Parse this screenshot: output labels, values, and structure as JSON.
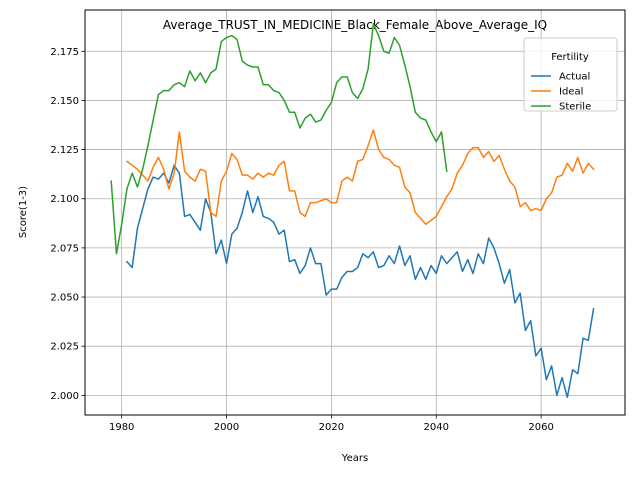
{
  "chart_data": {
    "type": "line",
    "title": "Average_TRUST_IN_MEDICINE_Black_Female_Above_Average_IQ",
    "xlabel": "Years",
    "ylabel": "Score(1-3)",
    "xlim": [
      1973,
      2076
    ],
    "ylim": [
      1.99,
      2.196
    ],
    "xticks": [
      1980,
      2000,
      2020,
      2040,
      2060
    ],
    "yticks": [
      2.0,
      2.025,
      2.05,
      2.075,
      2.1,
      2.125,
      2.15,
      2.175
    ],
    "ytick_labels": [
      "2.000",
      "2.025",
      "2.050",
      "2.075",
      "2.100",
      "2.125",
      "2.150",
      "2.175"
    ],
    "grid": true,
    "legend": {
      "title": "Fertility",
      "placement": "top-right"
    },
    "series": [
      {
        "name": "Actual",
        "color": "#1f77b4",
        "x": [
          1981,
          1982,
          1983,
          1984,
          1985,
          1986,
          1987,
          1988,
          1989,
          1990,
          1991,
          1992,
          1993,
          1994,
          1995,
          1996,
          1997,
          1998,
          1999,
          2000,
          2001,
          2002,
          2003,
          2004,
          2005,
          2006,
          2007,
          2008,
          2009,
          2010,
          2011,
          2012,
          2013,
          2014,
          2015,
          2016,
          2017,
          2018,
          2019,
          2020,
          2021,
          2022,
          2023,
          2024,
          2025,
          2026,
          2027,
          2028,
          2029,
          2030,
          2031,
          2032,
          2033,
          2034,
          2035,
          2036,
          2037,
          2038,
          2039,
          2040,
          2041,
          2042,
          2043,
          2044,
          2045,
          2046,
          2047,
          2048,
          2049,
          2050,
          2051,
          2052,
          2053,
          2054,
          2055,
          2056,
          2057,
          2058,
          2059,
          2060,
          2061,
          2062,
          2063,
          2064,
          2065,
          2066,
          2067,
          2068,
          2069,
          2070
        ],
        "values": [
          2.068,
          2.065,
          2.085,
          2.095,
          2.105,
          2.111,
          2.11,
          2.113,
          2.108,
          2.117,
          2.113,
          2.091,
          2.092,
          2.088,
          2.084,
          2.1,
          2.093,
          2.072,
          2.079,
          2.067,
          2.082,
          2.085,
          2.093,
          2.104,
          2.093,
          2.101,
          2.091,
          2.09,
          2.088,
          2.082,
          2.084,
          2.068,
          2.069,
          2.062,
          2.066,
          2.075,
          2.067,
          2.067,
          2.051,
          2.054,
          2.054,
          2.06,
          2.063,
          2.063,
          2.065,
          2.072,
          2.07,
          2.073,
          2.065,
          2.066,
          2.071,
          2.067,
          2.076,
          2.066,
          2.071,
          2.059,
          2.065,
          2.059,
          2.066,
          2.062,
          2.071,
          2.067,
          2.07,
          2.073,
          2.063,
          2.069,
          2.062,
          2.072,
          2.067,
          2.08,
          2.075,
          2.067,
          2.057,
          2.064,
          2.047,
          2.052,
          2.033,
          2.038,
          2.02,
          2.024,
          2.008,
          2.015,
          2.0,
          2.009,
          1.999,
          2.013,
          2.011,
          2.029,
          2.028,
          2.044
        ]
      },
      {
        "name": "Ideal",
        "color": "#ff7f0e",
        "x": [
          1981,
          1982,
          1983,
          1984,
          1985,
          1986,
          1987,
          1988,
          1989,
          1990,
          1991,
          1992,
          1993,
          1994,
          1995,
          1996,
          1997,
          1998,
          1999,
          2000,
          2001,
          2002,
          2003,
          2004,
          2005,
          2006,
          2007,
          2008,
          2009,
          2010,
          2011,
          2012,
          2013,
          2014,
          2015,
          2016,
          2017,
          2018,
          2019,
          2020,
          2021,
          2022,
          2023,
          2024,
          2025,
          2026,
          2027,
          2028,
          2029,
          2030,
          2031,
          2032,
          2033,
          2034,
          2035,
          2036,
          2037,
          2038,
          2039,
          2040,
          2041,
          2042,
          2043,
          2044,
          2045,
          2046,
          2047,
          2048,
          2049,
          2050,
          2051,
          2052,
          2053,
          2054,
          2055,
          2056,
          2057,
          2058,
          2059,
          2060,
          2061,
          2062,
          2063,
          2064,
          2065,
          2066,
          2067,
          2068,
          2069,
          2070
        ],
        "values": [
          2.119,
          2.117,
          2.115,
          2.112,
          2.109,
          2.116,
          2.121,
          2.115,
          2.105,
          2.113,
          2.134,
          2.114,
          2.111,
          2.109,
          2.115,
          2.114,
          2.093,
          2.091,
          2.109,
          2.114,
          2.123,
          2.12,
          2.112,
          2.112,
          2.11,
          2.113,
          2.111,
          2.113,
          2.112,
          2.117,
          2.119,
          2.104,
          2.104,
          2.093,
          2.091,
          2.098,
          2.098,
          2.099,
          2.1,
          2.098,
          2.098,
          2.109,
          2.111,
          2.109,
          2.119,
          2.12,
          2.127,
          2.135,
          2.125,
          2.121,
          2.12,
          2.117,
          2.116,
          2.106,
          2.103,
          2.093,
          2.09,
          2.087,
          2.089,
          2.091,
          2.096,
          2.101,
          2.105,
          2.113,
          2.117,
          2.123,
          2.126,
          2.126,
          2.121,
          2.124,
          2.119,
          2.122,
          2.115,
          2.109,
          2.106,
          2.096,
          2.098,
          2.094,
          2.095,
          2.094,
          2.1,
          2.103,
          2.111,
          2.112,
          2.118,
          2.114,
          2.121,
          2.113,
          2.118,
          2.115
        ]
      },
      {
        "name": "Sterile",
        "color": "#2ca02c",
        "x": [
          1978,
          1979,
          1980,
          1981,
          1982,
          1983,
          1984,
          1985,
          1986,
          1987,
          1988,
          1989,
          1990,
          1991,
          1992,
          1993,
          1994,
          1995,
          1996,
          1997,
          1998,
          1999,
          2000,
          2001,
          2002,
          2003,
          2004,
          2005,
          2006,
          2007,
          2008,
          2009,
          2010,
          2011,
          2012,
          2013,
          2014,
          2015,
          2016,
          2017,
          2018,
          2019,
          2020,
          2021,
          2022,
          2023,
          2024,
          2025,
          2026,
          2027,
          2028,
          2029,
          2030,
          2031,
          2032,
          2033,
          2034,
          2035,
          2036,
          2037,
          2038,
          2039,
          2040,
          2041,
          2042
        ],
        "values": [
          2.109,
          2.072,
          2.087,
          2.105,
          2.113,
          2.106,
          2.115,
          2.127,
          2.14,
          2.153,
          2.155,
          2.155,
          2.158,
          2.159,
          2.157,
          2.165,
          2.16,
          2.164,
          2.159,
          2.164,
          2.166,
          2.18,
          2.182,
          2.183,
          2.181,
          2.17,
          2.168,
          2.167,
          2.167,
          2.158,
          2.158,
          2.155,
          2.154,
          2.15,
          2.144,
          2.144,
          2.136,
          2.141,
          2.143,
          2.139,
          2.14,
          2.145,
          2.149,
          2.159,
          2.162,
          2.162,
          2.154,
          2.151,
          2.156,
          2.166,
          2.189,
          2.183,
          2.175,
          2.174,
          2.182,
          2.178,
          2.168,
          2.157,
          2.144,
          2.141,
          2.14,
          2.134,
          2.129,
          2.134,
          2.114
        ]
      }
    ]
  }
}
